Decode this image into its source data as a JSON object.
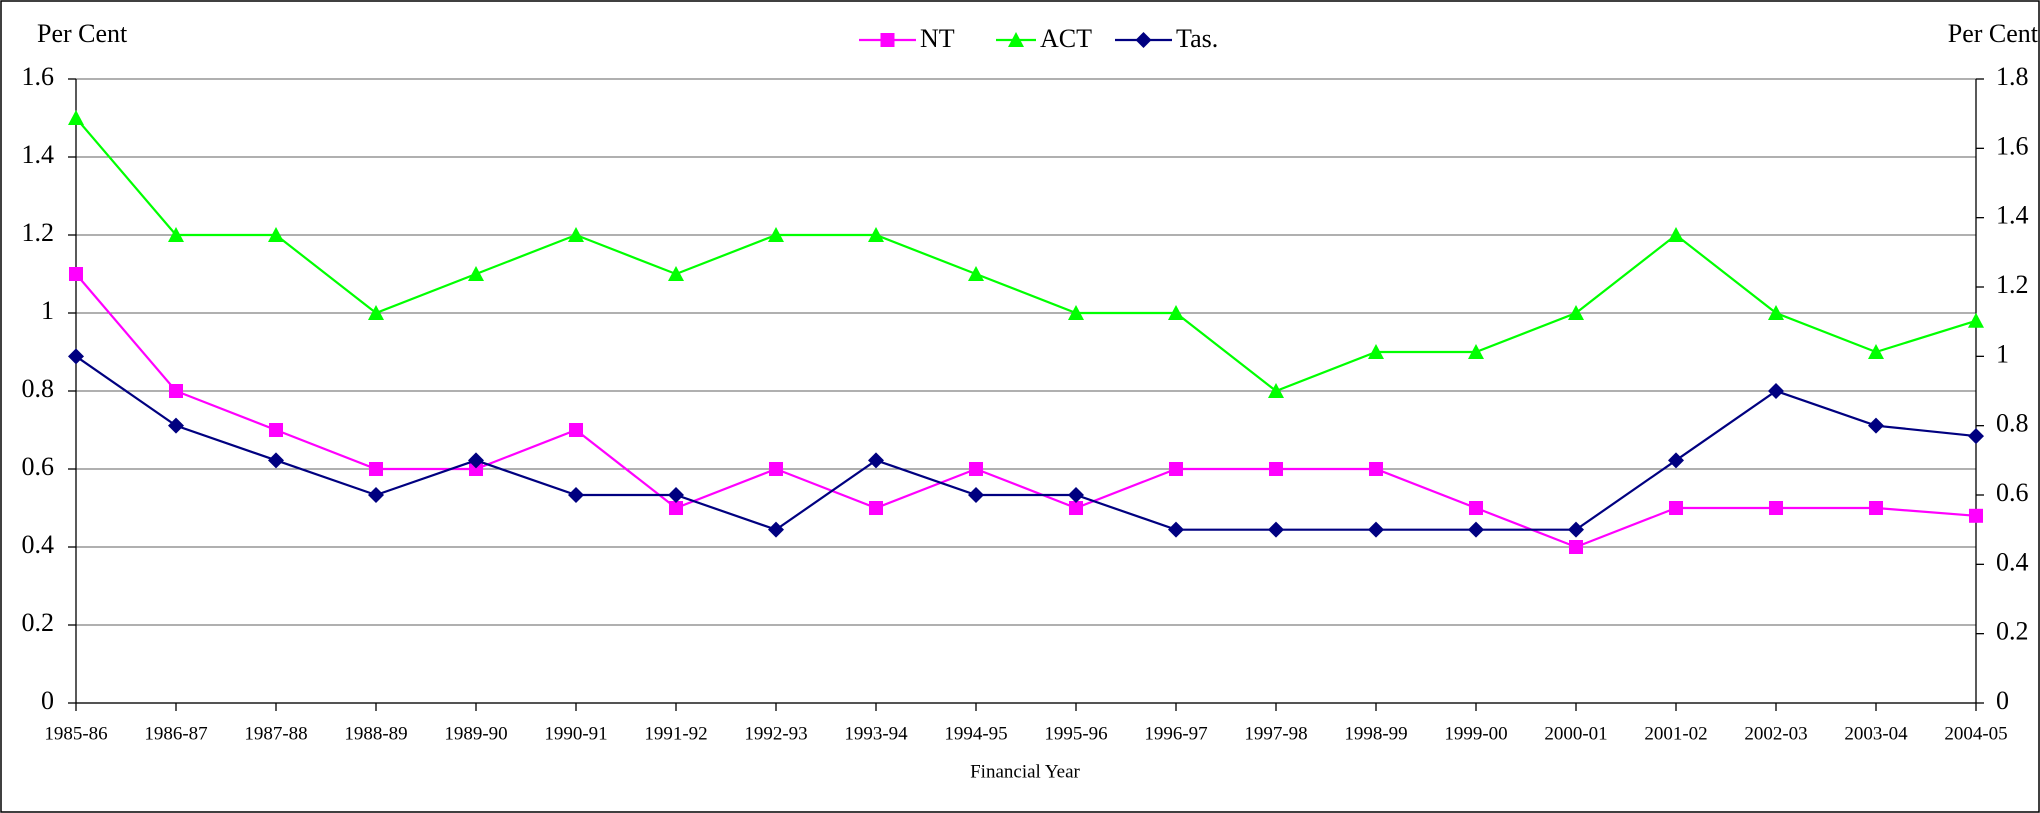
{
  "chart_data": {
    "type": "line",
    "y_label": "Per Cent",
    "y2_label": "Per Cent",
    "x_label": "Financial Year",
    "categories": [
      "1985-86",
      "1986-87",
      "1987-88",
      "1988-89",
      "1989-90",
      "1990-91",
      "1991-92",
      "1992-93",
      "1993-94",
      "1994-95",
      "1995-96",
      "1996-97",
      "1997-98",
      "1998-99",
      "1999-00",
      "2000-01",
      "2001-02",
      "2002-03",
      "2003-04",
      "2004-05"
    ],
    "series": [
      {
        "name": "NT",
        "color": "#ff00ff",
        "marker": "square",
        "values": [
          1.1,
          0.8,
          0.7,
          0.6,
          0.6,
          0.7,
          0.5,
          0.6,
          0.5,
          0.6,
          0.5,
          0.6,
          0.6,
          0.6,
          0.5,
          0.4,
          0.5,
          0.5,
          0.5,
          0.48
        ]
      },
      {
        "name": "ACT",
        "color": "#00ff00",
        "marker": "triangle",
        "values": [
          1.5,
          1.2,
          1.2,
          1.0,
          1.1,
          1.2,
          1.1,
          1.2,
          1.2,
          1.1,
          1.0,
          1.0,
          0.8,
          0.9,
          0.9,
          1.0,
          1.2,
          1.0,
          0.9,
          0.98
        ]
      },
      {
        "name": "Tas.",
        "color": "#000080",
        "marker": "diamond",
        "axis": "y2",
        "values": [
          1.0,
          0.8,
          0.7,
          0.6,
          0.7,
          0.6,
          0.6,
          0.5,
          0.7,
          0.6,
          0.6,
          0.5,
          0.5,
          0.5,
          0.5,
          0.5,
          0.7,
          0.9,
          0.8,
          0.77
        ]
      }
    ],
    "ylim": [
      0,
      1.6
    ],
    "yticks": [
      0,
      0.2,
      0.4,
      0.6,
      0.8,
      1,
      1.2,
      1.4,
      1.6
    ],
    "y2lim": [
      0,
      1.8
    ],
    "y2ticks": [
      0,
      0.2,
      0.4,
      0.6,
      0.8,
      1,
      1.2,
      1.4,
      1.6,
      1.8
    ],
    "grid": true,
    "legend": "top"
  }
}
